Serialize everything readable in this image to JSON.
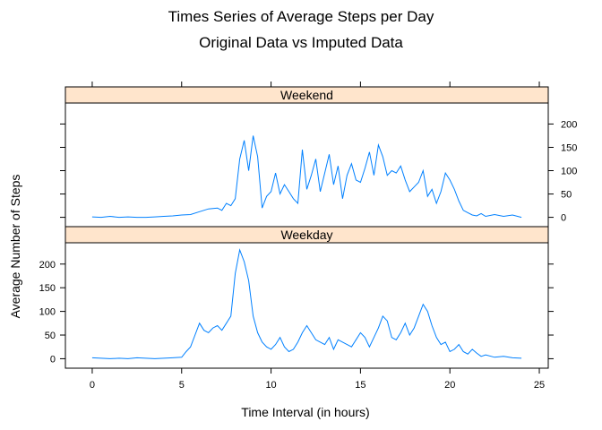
{
  "chart_data": {
    "type": "line",
    "title": "Times Series of Average Steps per Day",
    "subtitle": "Original Data vs Imputed Data",
    "xlabel": "Time Interval (in hours)",
    "ylabel": "Average Number of Steps",
    "xlim": [
      -1.5,
      25.5
    ],
    "ylim": [
      -20,
      245
    ],
    "x_ticks": [
      "0",
      "5",
      "10",
      "15",
      "20",
      "25"
    ],
    "y_ticks": [
      "0",
      "50",
      "100",
      "150",
      "200"
    ],
    "series_color": "#0080ff",
    "strip_color": "#ffe5cc",
    "panels": [
      {
        "strip_label": "Weekend",
        "tick_side": "right",
        "x": [
          0,
          0.5,
          1,
          1.5,
          2,
          2.5,
          3,
          3.5,
          4,
          4.5,
          5,
          5.5,
          6,
          6.5,
          7,
          7.25,
          7.5,
          7.75,
          8,
          8.25,
          8.5,
          8.75,
          9,
          9.25,
          9.5,
          9.75,
          10,
          10.25,
          10.5,
          10.75,
          11,
          11.25,
          11.5,
          11.75,
          12,
          12.25,
          12.5,
          12.75,
          13,
          13.25,
          13.5,
          13.75,
          14,
          14.25,
          14.5,
          14.75,
          15,
          15.25,
          15.5,
          15.75,
          16,
          16.25,
          16.5,
          16.75,
          17,
          17.25,
          17.5,
          17.75,
          18,
          18.25,
          18.5,
          18.75,
          19,
          19.25,
          19.5,
          19.75,
          20,
          20.25,
          20.5,
          20.75,
          21,
          21.25,
          21.5,
          21.75,
          22,
          22.5,
          23,
          23.5,
          24
        ],
        "y": [
          1,
          0,
          2,
          0,
          1,
          0,
          0,
          1,
          2,
          3,
          5,
          6,
          12,
          18,
          20,
          15,
          30,
          25,
          40,
          125,
          165,
          100,
          175,
          130,
          20,
          45,
          55,
          95,
          50,
          70,
          55,
          40,
          30,
          145,
          60,
          90,
          125,
          55,
          95,
          135,
          70,
          110,
          40,
          90,
          115,
          80,
          75,
          105,
          140,
          90,
          155,
          130,
          90,
          100,
          95,
          110,
          80,
          55,
          65,
          75,
          100,
          45,
          60,
          30,
          55,
          95,
          80,
          60,
          35,
          15,
          10,
          5,
          3,
          8,
          2,
          6,
          2,
          5,
          0
        ]
      },
      {
        "strip_label": "Weekday",
        "tick_side": "left",
        "x": [
          0,
          0.5,
          1,
          1.5,
          2,
          2.5,
          3,
          3.5,
          4,
          4.5,
          5,
          5.25,
          5.5,
          5.75,
          6,
          6.25,
          6.5,
          6.75,
          7,
          7.25,
          7.5,
          7.75,
          8,
          8.25,
          8.5,
          8.75,
          9,
          9.25,
          9.5,
          9.75,
          10,
          10.25,
          10.5,
          10.75,
          11,
          11.25,
          11.5,
          11.75,
          12,
          12.25,
          12.5,
          12.75,
          13,
          13.25,
          13.5,
          13.75,
          14,
          14.25,
          14.5,
          14.75,
          15,
          15.25,
          15.5,
          15.75,
          16,
          16.25,
          16.5,
          16.75,
          17,
          17.25,
          17.5,
          17.75,
          18,
          18.25,
          18.5,
          18.75,
          19,
          19.25,
          19.5,
          19.75,
          20,
          20.25,
          20.5,
          20.75,
          21,
          21.25,
          21.5,
          21.75,
          22,
          22.5,
          23,
          23.5,
          24
        ],
        "y": [
          2,
          1,
          0,
          1,
          0,
          2,
          1,
          0,
          1,
          2,
          3,
          15,
          25,
          50,
          75,
          60,
          55,
          65,
          70,
          60,
          75,
          90,
          180,
          230,
          205,
          165,
          90,
          55,
          35,
          25,
          20,
          30,
          45,
          25,
          15,
          20,
          35,
          55,
          70,
          55,
          40,
          35,
          30,
          45,
          20,
          40,
          35,
          30,
          25,
          40,
          55,
          45,
          25,
          45,
          65,
          90,
          80,
          45,
          40,
          55,
          75,
          50,
          65,
          90,
          115,
          100,
          70,
          45,
          30,
          35,
          15,
          20,
          30,
          15,
          10,
          20,
          12,
          5,
          8,
          3,
          5,
          2,
          1
        ]
      }
    ]
  }
}
